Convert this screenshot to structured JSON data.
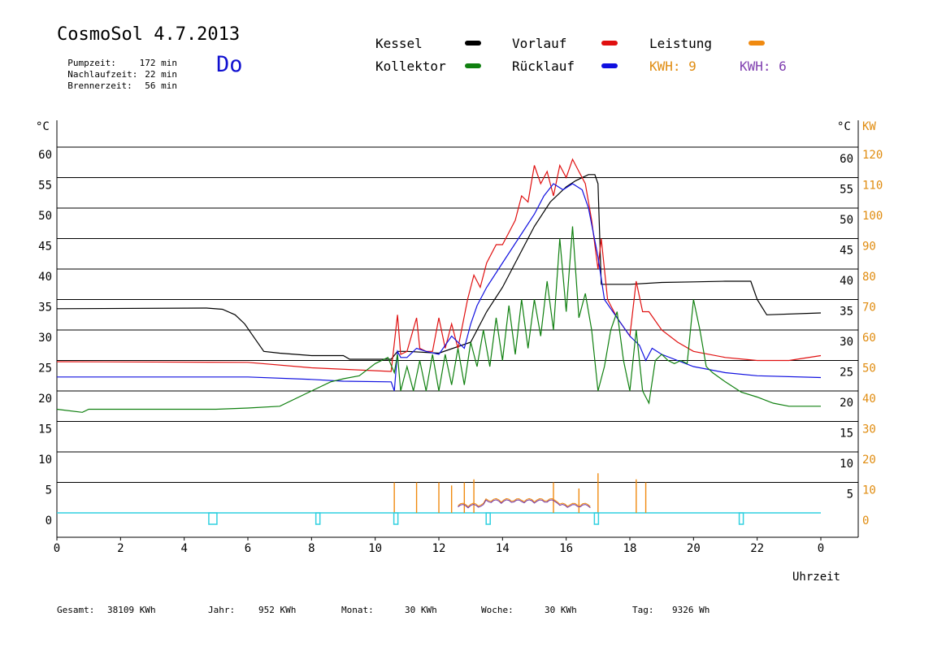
{
  "header": {
    "title": "CosmoSol 4.7.2013",
    "day": "Do",
    "stats": [
      {
        "label": "Pumpzeit:",
        "value": "172 min"
      },
      {
        "label": "Nachlaufzeit:",
        "value": "22 min"
      },
      {
        "label": "Brennerzeit:",
        "value": "56 min"
      }
    ]
  },
  "legend": {
    "kessel": {
      "label": "Kessel",
      "color": "#000000"
    },
    "vorlauf": {
      "label": "Vorlauf",
      "color": "#e01010"
    },
    "leistung": {
      "label": "Leistung",
      "color": "#f08a10"
    },
    "kollektor": {
      "label": "Kollektor",
      "color": "#108010"
    },
    "ruecklauf": {
      "label": "Rücklauf",
      "color": "#1010e0"
    },
    "kwh1": {
      "label": "KWH: 9",
      "color": "#e08c10"
    },
    "kwh2": {
      "label": "KWH: 6",
      "color": "#8040b0"
    }
  },
  "footer": {
    "gesamt_label": "Gesamt:",
    "gesamt_value": "38109 KWh",
    "jahr_label": "Jahr:",
    "jahr_value": "952 KWh",
    "monat_label": "Monat:",
    "monat_value": "30 KWh",
    "woche_label": "Woche:",
    "woche_value": "30 KWh",
    "tag_label": "Tag:",
    "tag_value": "9326 Wh"
  },
  "chart_data": {
    "type": "line",
    "xlabel": "Uhrzeit",
    "ylabel_left": "°C",
    "ylabel_right_temp": "°C",
    "ylabel_right_power": "KW",
    "xlim": [
      0,
      24
    ],
    "ylim": [
      -4,
      64
    ],
    "y_grid": [
      0,
      5,
      10,
      15,
      20,
      25,
      30,
      35,
      40,
      45,
      50,
      55,
      60
    ],
    "x_ticks": [
      "0",
      "2",
      "4",
      "6",
      "8",
      "10",
      "12",
      "14",
      "16",
      "18",
      "20",
      "22",
      "0"
    ],
    "y_ticks_left": [
      "0",
      "5",
      "10",
      "15",
      "20",
      "25",
      "30",
      "35",
      "40",
      "45",
      "50",
      "55",
      "60"
    ],
    "y_ticks_right_temp": [
      "",
      "5",
      "10",
      "15",
      "20",
      "25",
      "30",
      "35",
      "40",
      "45",
      "50",
      "55",
      "60"
    ],
    "y_ticks_right_power": [
      "0",
      "10",
      "20",
      "30",
      "40",
      "50",
      "60",
      "70",
      "80",
      "90",
      "100",
      "110",
      "120"
    ],
    "grid": true,
    "legend_position": "top",
    "series": [
      {
        "name": "Kessel",
        "color": "#000000",
        "x": [
          0,
          4.7,
          5.2,
          5.6,
          5.9,
          6.1,
          6.5,
          7,
          8,
          9,
          9.2,
          10.5,
          10.7,
          11,
          12,
          13,
          13.5,
          14,
          14.5,
          15,
          15.5,
          16,
          16.3,
          16.7,
          16.9,
          17.0,
          17.1,
          18,
          19,
          20,
          21,
          21.8,
          22.0,
          22.3,
          24
        ],
        "y": [
          33.5,
          33.6,
          33.4,
          32.5,
          31,
          29.5,
          26.5,
          26.2,
          25.8,
          25.8,
          25.2,
          25.2,
          26.5,
          26.5,
          26.2,
          28,
          33,
          37,
          42,
          47,
          51,
          53.5,
          54.5,
          55.5,
          55.5,
          54,
          37.5,
          37.5,
          37.8,
          37.9,
          38,
          38,
          35,
          32.5,
          32.8
        ]
      },
      {
        "name": "Vorlauf",
        "color": "#e01010",
        "x": [
          0,
          6,
          8,
          10.5,
          10.7,
          10.8,
          11,
          11.3,
          11.4,
          11.6,
          11.8,
          12,
          12.2,
          12.4,
          12.6,
          12.9,
          13.1,
          13.3,
          13.5,
          13.8,
          14,
          14.2,
          14.4,
          14.6,
          14.8,
          15,
          15.2,
          15.4,
          15.6,
          15.8,
          16,
          16.2,
          16.4,
          16.6,
          16.8,
          17.0,
          17.1,
          17.3,
          17.6,
          18,
          18.2,
          18.4,
          18.6,
          19,
          19.5,
          20,
          21,
          22,
          23,
          24
        ],
        "y": [
          24.8,
          24.7,
          23.8,
          23.2,
          32.5,
          26,
          26.5,
          32,
          27,
          26.5,
          26.5,
          32,
          27,
          31,
          27,
          35,
          39,
          37,
          41,
          44,
          44,
          46,
          48,
          52,
          51,
          57,
          54,
          56,
          52,
          57,
          55,
          58,
          56,
          54,
          48,
          40,
          45,
          35,
          32,
          29,
          38,
          33,
          33,
          30,
          28,
          26.5,
          25.5,
          25,
          25,
          25.8
        ]
      },
      {
        "name": "Rücklauf",
        "color": "#1010e0",
        "x": [
          0,
          6,
          8,
          9,
          10.5,
          10.6,
          10.7,
          10.8,
          11,
          11.3,
          11.6,
          12,
          12.4,
          12.8,
          13.0,
          13.2,
          13.5,
          14,
          14.5,
          15,
          15.3,
          15.6,
          15.9,
          16.2,
          16.5,
          16.7,
          17.0,
          17.2,
          17.6,
          18,
          18.3,
          18.5,
          18.7,
          19,
          20,
          21,
          22,
          24
        ],
        "y": [
          22.3,
          22.3,
          21.9,
          21.6,
          21.5,
          20,
          26.5,
          25.5,
          25.5,
          27,
          26.5,
          26,
          29,
          27,
          31,
          34,
          37,
          41,
          45,
          49,
          52,
          54,
          53,
          54,
          53,
          50,
          42,
          35,
          32,
          29,
          27.5,
          25,
          27,
          26,
          24,
          23,
          22.5,
          22.2
        ]
      },
      {
        "name": "Kollektor",
        "color": "#108010",
        "x": [
          0,
          0.8,
          1,
          3,
          5,
          6,
          7,
          8,
          8.6,
          9,
          9.5,
          10,
          10.4,
          10.6,
          10.7,
          10.8,
          11.0,
          11.2,
          11.4,
          11.6,
          11.8,
          12.0,
          12.2,
          12.4,
          12.6,
          12.8,
          13.0,
          13.2,
          13.4,
          13.6,
          13.8,
          14.0,
          14.2,
          14.4,
          14.6,
          14.8,
          15.0,
          15.2,
          15.4,
          15.6,
          15.8,
          16.0,
          16.2,
          16.4,
          16.6,
          16.8,
          17.0,
          17.2,
          17.4,
          17.6,
          17.8,
          18.0,
          18.2,
          18.4,
          18.6,
          18.8,
          19.0,
          19.2,
          19.4,
          19.6,
          19.8,
          20.0,
          20.2,
          20.4,
          20.6,
          21,
          21.5,
          22,
          22.5,
          23,
          24
        ],
        "y": [
          17,
          16.5,
          17,
          17,
          17,
          17.2,
          17.5,
          20,
          21.5,
          22,
          22.5,
          24.5,
          25.5,
          23,
          26,
          20,
          24,
          20,
          25,
          20,
          26,
          20,
          26,
          21,
          27,
          21,
          28,
          24,
          30,
          24,
          32,
          25,
          34,
          26,
          35,
          27,
          35,
          29,
          38,
          30,
          45,
          33,
          47,
          32,
          36,
          30,
          20,
          24,
          30,
          33,
          25,
          20,
          30,
          20,
          18,
          25,
          26,
          25,
          24.5,
          25,
          24.5,
          35,
          30,
          24,
          23,
          21.5,
          19.8,
          19,
          18,
          17.5,
          17.5
        ]
      }
    ],
    "power_spikes": [
      {
        "x": 10.6,
        "kw": 10
      },
      {
        "x": 11.3,
        "kw": 10
      },
      {
        "x": 12.0,
        "kw": 10
      },
      {
        "x": 12.4,
        "kw": 9
      },
      {
        "x": 12.8,
        "kw": 10
      },
      {
        "x": 13.1,
        "kw": 11
      },
      {
        "x": 15.6,
        "kw": 10
      },
      {
        "x": 16.4,
        "kw": 8
      },
      {
        "x": 17.0,
        "kw": 13
      },
      {
        "x": 18.2,
        "kw": 11
      },
      {
        "x": 18.5,
        "kw": 10
      }
    ],
    "pump_markers_x": [
      4.9,
      8.2,
      10.65,
      13.55,
      16.95,
      21.5
    ]
  }
}
